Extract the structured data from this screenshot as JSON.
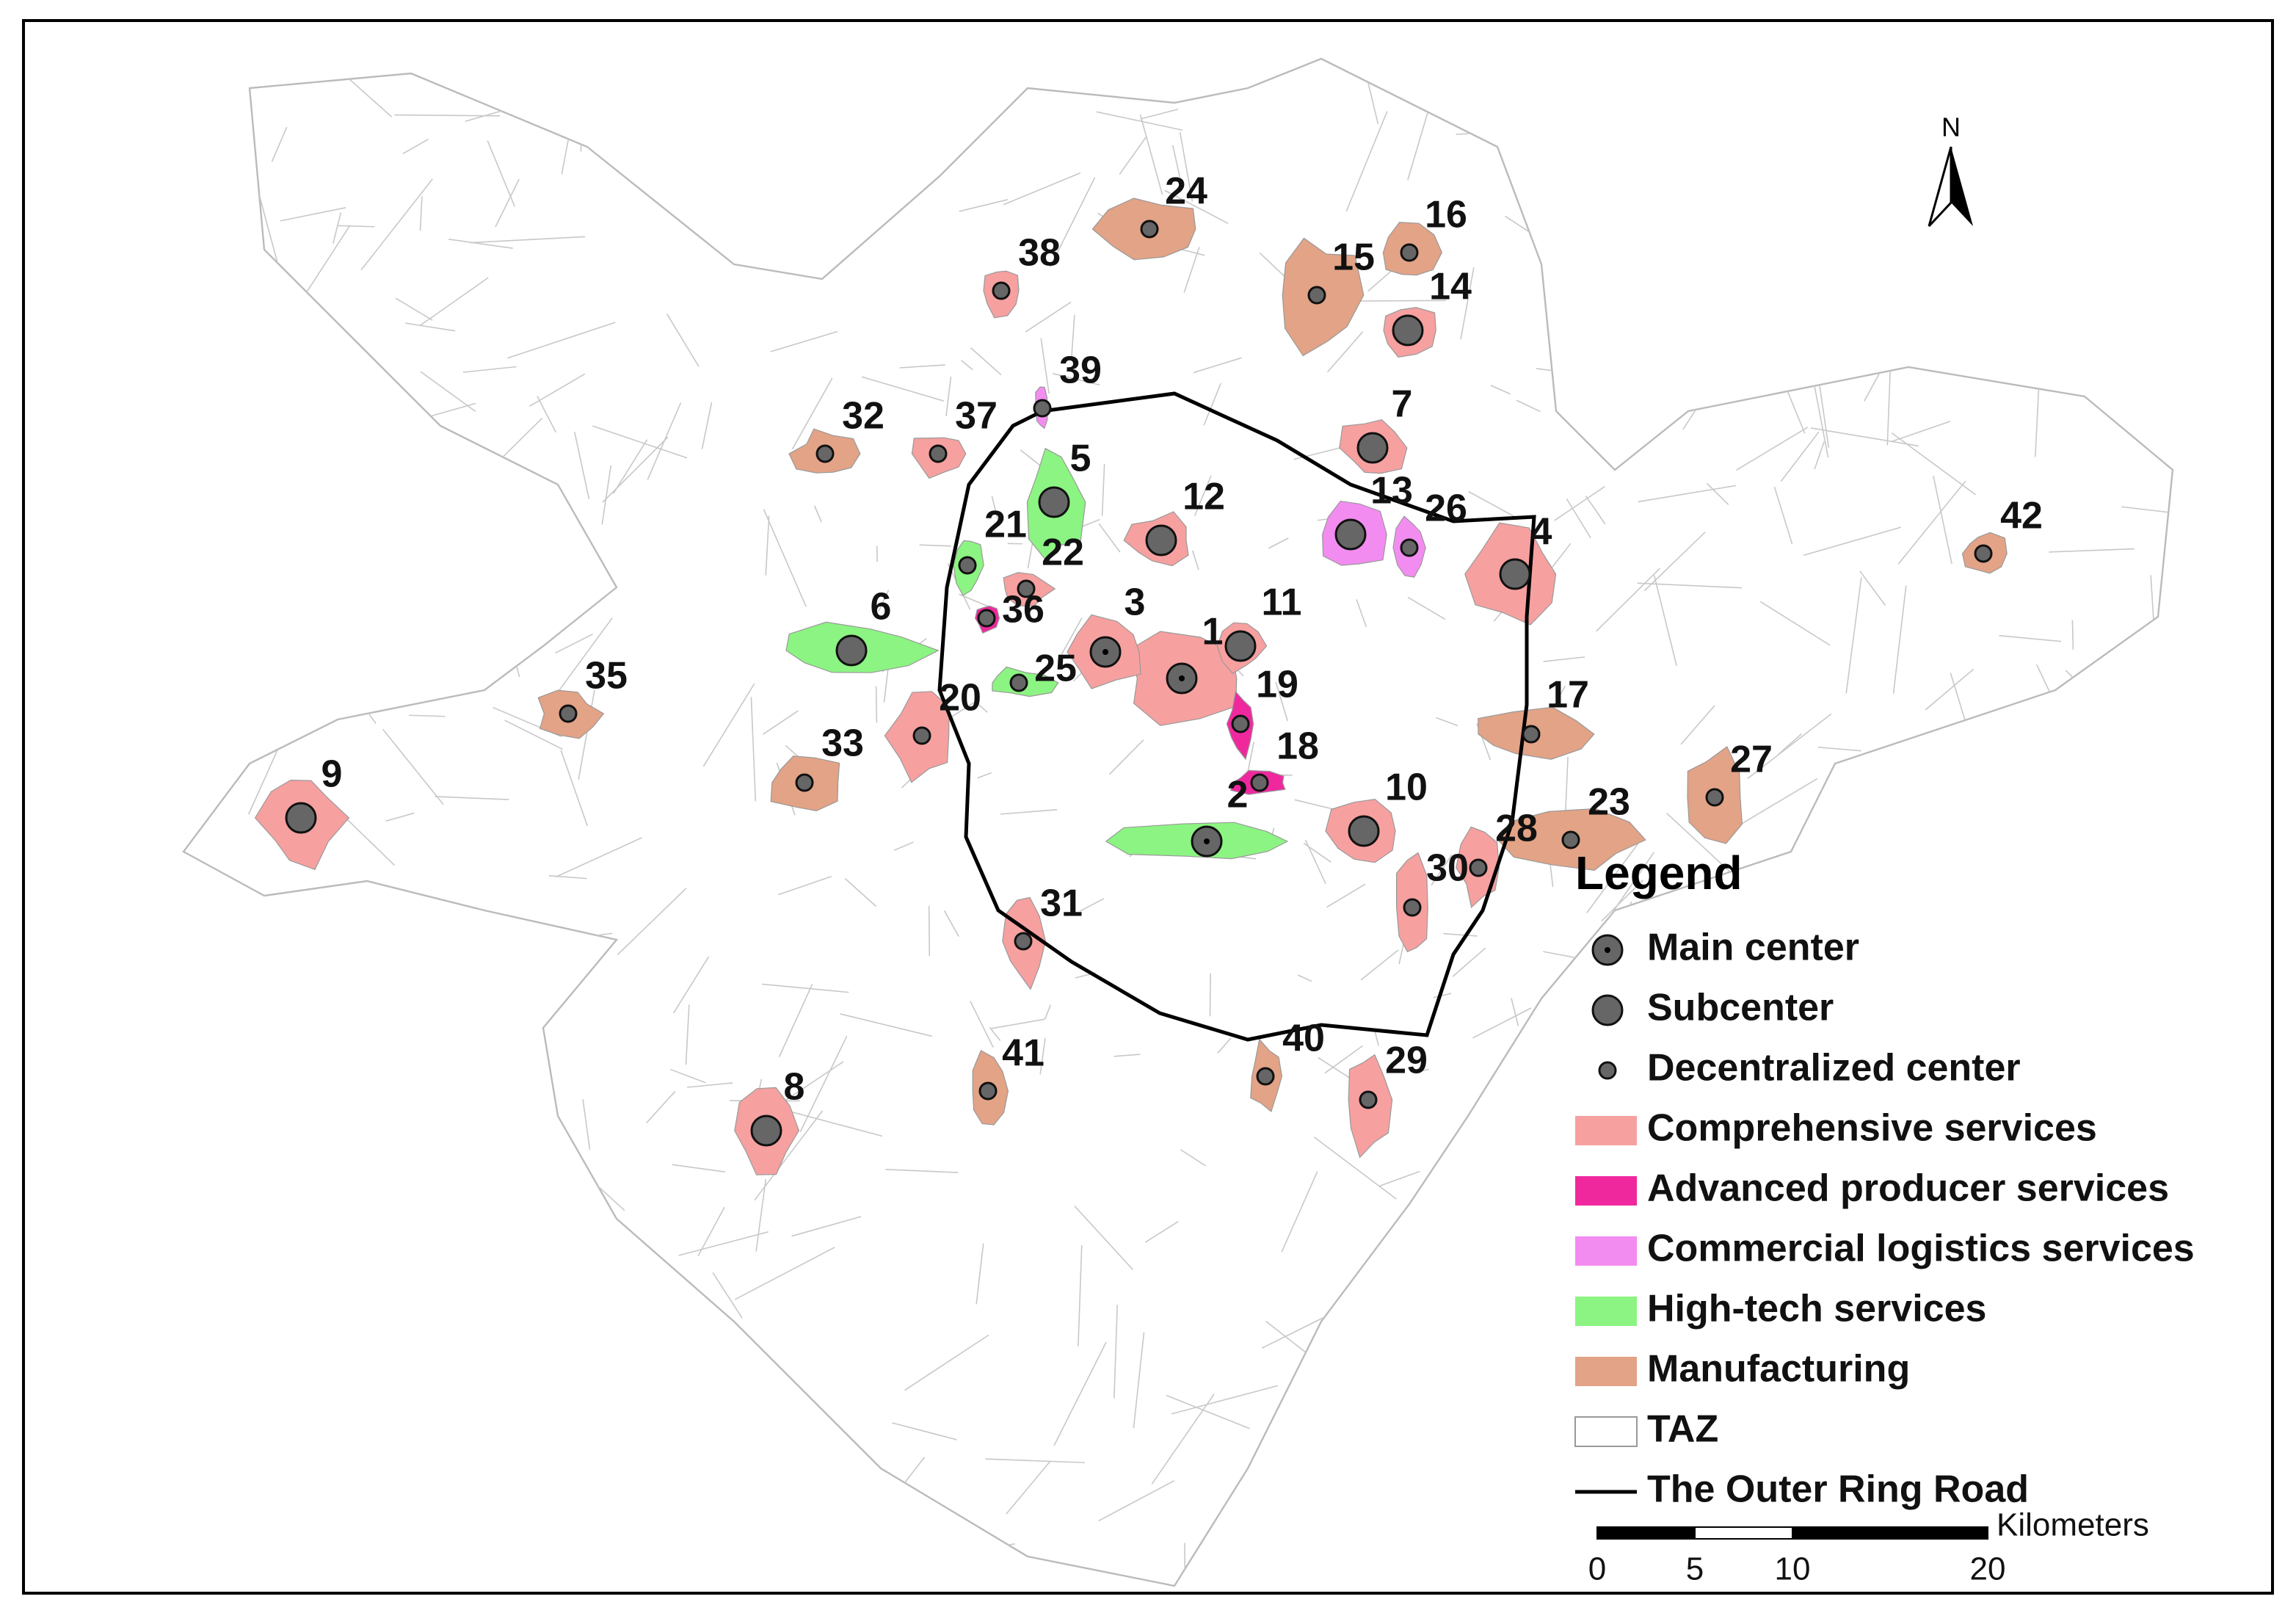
{
  "north": "N",
  "centers": [
    "1",
    "2",
    "3",
    "4",
    "5",
    "6",
    "7",
    "8",
    "9",
    "10",
    "11",
    "12",
    "13",
    "14",
    "15",
    "16",
    "17",
    "18",
    "19",
    "20",
    "21",
    "22",
    "23",
    "24",
    "25",
    "26",
    "27",
    "28",
    "29",
    "30",
    "31",
    "32",
    "33",
    "35",
    "36",
    "37",
    "38",
    "39",
    "40",
    "41",
    "42"
  ],
  "legend": {
    "title": "Legend",
    "items": [
      "Main center",
      "Subcenter",
      "Decentralized center",
      "Comprehensive services",
      "Advanced producer services",
      "Commercial logistics services",
      "High-tech services",
      "Manufacturing",
      "TAZ",
      "The Outer Ring Road"
    ]
  },
  "scale": {
    "unit": "Kilometers",
    "ticks": [
      0,
      5,
      10,
      20
    ]
  }
}
